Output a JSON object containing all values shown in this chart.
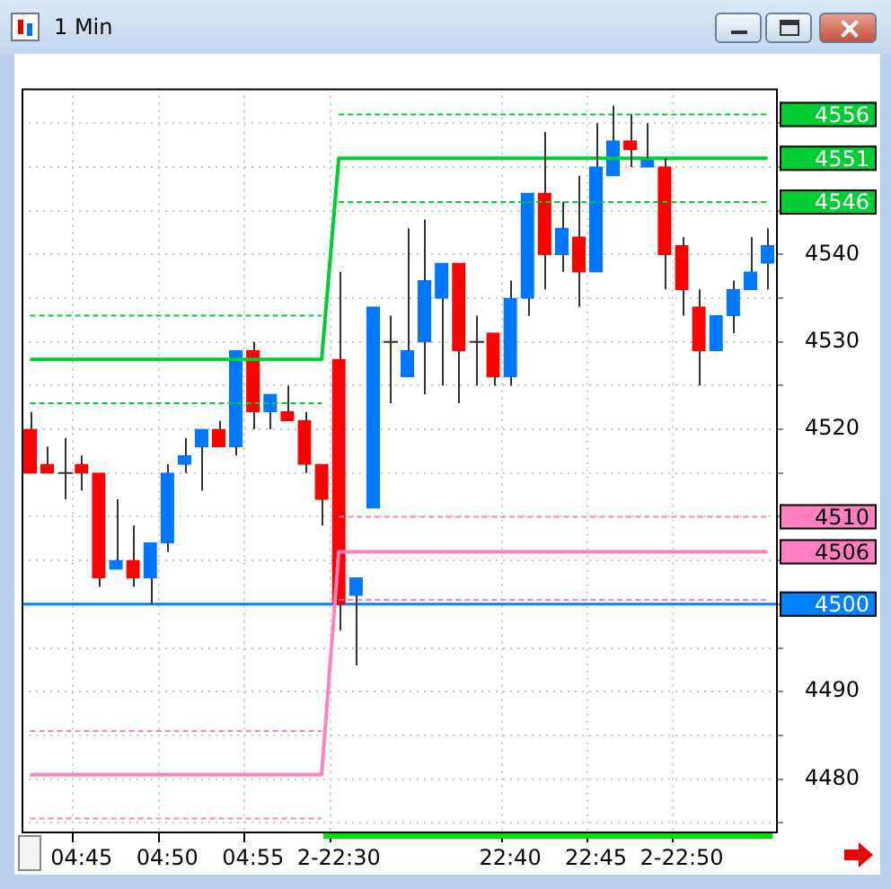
{
  "chart_data": {
    "type": "candlestick",
    "title": "1 Min",
    "categories": [
      null,
      null,
      null,
      "04:45",
      null,
      null,
      null,
      null,
      "04:50",
      null,
      null,
      null,
      null,
      "04:55",
      null,
      null,
      null,
      null,
      "2-22:30",
      null,
      null,
      null,
      null,
      null,
      null,
      null,
      null,
      null,
      "22:40",
      null,
      null,
      null,
      null,
      "22:45",
      null,
      null,
      null,
      null,
      "2-22:50",
      null,
      null,
      null,
      null,
      null
    ],
    "ohlc": [
      [
        4520,
        4522,
        4515,
        4515
      ],
      [
        4516,
        4518,
        4515,
        4515
      ],
      [
        4515,
        4519,
        4512,
        4515
      ],
      [
        4516,
        4517,
        4513,
        4515
      ],
      [
        4515,
        4515,
        4502,
        4503
      ],
      [
        4504,
        4512,
        4504,
        4505
      ],
      [
        4505,
        4509,
        4502,
        4503
      ],
      [
        4503,
        4507,
        4500,
        4507
      ],
      [
        4507,
        4516,
        4506,
        4515
      ],
      [
        4516,
        4519,
        4515,
        4517
      ],
      [
        4518,
        4520,
        4513,
        4520
      ],
      [
        4520,
        4521,
        4518,
        4518
      ],
      [
        4518,
        4529,
        4517,
        4529
      ],
      [
        4529,
        4530,
        4520,
        4522
      ],
      [
        4522,
        4524,
        4520,
        4524
      ],
      [
        4522,
        4525,
        4521,
        4521
      ],
      [
        4521,
        4522,
        4515,
        4516
      ],
      [
        4516,
        4516,
        4509,
        4512
      ],
      [
        4528,
        4538,
        4497,
        4500
      ],
      [
        4501,
        4503,
        4493,
        4503
      ],
      [
        4511,
        4534,
        4511,
        4534
      ],
      [
        4530,
        4533,
        4523,
        4530
      ],
      [
        4526,
        4543,
        4526,
        4529
      ],
      [
        4530,
        4544,
        4524,
        4537
      ],
      [
        4535,
        4539,
        4525,
        4539
      ],
      [
        4539,
        4539,
        4523,
        4529
      ],
      [
        4530,
        4533,
        4525,
        4530
      ],
      [
        4531,
        4531,
        4525,
        4526
      ],
      [
        4526,
        4537,
        4525,
        4535
      ],
      [
        4535,
        4547,
        4533,
        4547
      ],
      [
        4547,
        4554,
        4536,
        4540
      ],
      [
        4540,
        4546,
        4538,
        4543
      ],
      [
        4542,
        4549,
        4534,
        4538
      ],
      [
        4538,
        4555,
        4538,
        4550
      ],
      [
        4549,
        4557,
        4549,
        4553
      ],
      [
        4553,
        4556,
        4550,
        4552
      ],
      [
        4550,
        4555,
        4550,
        4551
      ],
      [
        4550,
        4551,
        4536,
        4540
      ],
      [
        4541,
        4542,
        4533,
        4536
      ],
      [
        4534,
        4536,
        4525,
        4529
      ],
      [
        4529,
        4533,
        4529,
        4533
      ],
      [
        4533,
        4537,
        4531,
        4536
      ],
      [
        4536,
        4542,
        4536,
        4538
      ],
      [
        4539,
        4543,
        4536,
        4541
      ]
    ],
    "colors": [
      "#ff0000",
      "#ff0000",
      "#333333",
      "#ff0000",
      "#ff0000",
      "#0077ff",
      "#ff0000",
      "#0077ff",
      "#0077ff",
      "#0077ff",
      "#0077ff",
      "#ff0000",
      "#0077ff",
      "#ff0000",
      "#0077ff",
      "#ff0000",
      "#ff0000",
      "#ff0000",
      "#ff0000",
      "#0077ff",
      "#0077ff",
      "#333333",
      "#0077ff",
      "#0077ff",
      "#0077ff",
      "#ff0000",
      "#333333",
      "#ff0000",
      "#0077ff",
      "#0077ff",
      "#ff0000",
      "#0077ff",
      "#ff0000",
      "#0077ff",
      "#0077ff",
      "#ff0000",
      "#0077ff",
      "#ff0000",
      "#ff0000",
      "#ff0000",
      "#0077ff",
      "#0077ff",
      "#0077ff",
      "#0077ff"
    ],
    "series": [
      {
        "type": "line",
        "line_style": "solid",
        "name": "4551",
        "color": "#00cc33",
        "values": [
          4528,
          4528,
          4528,
          4528,
          4528,
          4528,
          4528,
          4528,
          4528,
          4528,
          4528,
          4528,
          4528,
          4528,
          4528,
          4528,
          4528,
          4528,
          4551,
          4551,
          4551,
          4551,
          4551,
          4551,
          4551,
          4551,
          4551,
          4551,
          4551,
          4551,
          4551,
          4551,
          4551,
          4551,
          4551,
          4551,
          4551,
          4551,
          4551,
          4551,
          4551,
          4551,
          4551,
          4551
        ]
      },
      {
        "type": "line",
        "line_style": "dashed",
        "color": "#00cc33",
        "values": [
          4533,
          4533,
          4533,
          4533,
          4533,
          4533,
          4533,
          4533,
          4533,
          4533,
          4533,
          4533,
          4533,
          4533,
          4533,
          4533,
          4533,
          4533,
          null,
          null,
          null,
          null,
          null,
          null,
          null,
          null,
          null,
          null,
          null,
          null,
          null,
          null,
          null,
          null,
          null,
          null,
          null,
          null,
          null,
          null,
          null,
          null,
          null,
          null
        ]
      },
      {
        "type": "line",
        "line_style": "dashed",
        "color": "#00cc33",
        "values": [
          4523,
          4523,
          4523,
          4523,
          4523,
          4523,
          4523,
          4523,
          4523,
          4523,
          4523,
          4523,
          4523,
          4523,
          4523,
          4523,
          4523,
          4523,
          null,
          null,
          null,
          null,
          null,
          null,
          null,
          null,
          null,
          null,
          null,
          null,
          null,
          null,
          null,
          null,
          null,
          null,
          null,
          null,
          null,
          null,
          null,
          null,
          null,
          null
        ]
      },
      {
        "type": "line",
        "line_style": "dashed",
        "name": "4556",
        "color": "#00cc33",
        "values": [
          null,
          null,
          null,
          null,
          null,
          null,
          null,
          null,
          null,
          null,
          null,
          null,
          null,
          null,
          null,
          null,
          null,
          null,
          4556,
          4556,
          4556,
          4556,
          4556,
          4556,
          4556,
          4556,
          4556,
          4556,
          4556,
          4556,
          4556,
          4556,
          4556,
          4556,
          4556,
          4556,
          4556,
          4556,
          4556,
          4556,
          4556,
          4556,
          4556,
          4556
        ]
      },
      {
        "type": "line",
        "line_style": "dashed",
        "name": "4546",
        "color": "#00cc33",
        "values": [
          null,
          null,
          null,
          null,
          null,
          null,
          null,
          null,
          null,
          null,
          null,
          null,
          null,
          null,
          null,
          null,
          null,
          null,
          4546,
          4546,
          4546,
          4546,
          4546,
          4546,
          4546,
          4546,
          4546,
          4546,
          4546,
          4546,
          4546,
          4546,
          4546,
          4546,
          4546,
          4546,
          4546,
          4546,
          4546,
          4546,
          4546,
          4546,
          4546,
          4546
        ]
      },
      {
        "type": "line",
        "line_style": "solid",
        "name": "4506",
        "color": "#ff80c0",
        "values": [
          4480.5,
          4480.5,
          4480.5,
          4480.5,
          4480.5,
          4480.5,
          4480.5,
          4480.5,
          4480.5,
          4480.5,
          4480.5,
          4480.5,
          4480.5,
          4480.5,
          4480.5,
          4480.5,
          4480.5,
          4480.5,
          4506,
          4506,
          4506,
          4506,
          4506,
          4506,
          4506,
          4506,
          4506,
          4506,
          4506,
          4506,
          4506,
          4506,
          4506,
          4506,
          4506,
          4506,
          4506,
          4506,
          4506,
          4506,
          4506,
          4506,
          4506,
          4506
        ]
      },
      {
        "type": "line",
        "line_style": "dashed",
        "color": "#ff80c0",
        "values": [
          4485.5,
          4485.5,
          4485.5,
          4485.5,
          4485.5,
          4485.5,
          4485.5,
          4485.5,
          4485.5,
          4485.5,
          4485.5,
          4485.5,
          4485.5,
          4485.5,
          4485.5,
          4485.5,
          4485.5,
          4485.5,
          null,
          null,
          null,
          null,
          null,
          null,
          null,
          null,
          null,
          null,
          null,
          null,
          null,
          null,
          null,
          null,
          null,
          null,
          null,
          null,
          null,
          null,
          null,
          null,
          null,
          null
        ]
      },
      {
        "type": "line",
        "line_style": "dashed",
        "color": "#ff80c0",
        "values": [
          4475.5,
          4475.5,
          4475.5,
          4475.5,
          4475.5,
          4475.5,
          4475.5,
          4475.5,
          4475.5,
          4475.5,
          4475.5,
          4475.5,
          4475.5,
          4475.5,
          4475.5,
          4475.5,
          4475.5,
          4475.5,
          null,
          null,
          null,
          null,
          null,
          null,
          null,
          null,
          null,
          null,
          null,
          null,
          null,
          null,
          null,
          null,
          null,
          null,
          null,
          null,
          null,
          null,
          null,
          null,
          null,
          null
        ]
      },
      {
        "type": "line",
        "line_style": "dashed",
        "name": "4510",
        "color": "#ff80c0",
        "values": [
          null,
          null,
          null,
          null,
          null,
          null,
          null,
          null,
          null,
          null,
          null,
          null,
          null,
          null,
          null,
          null,
          null,
          null,
          4510,
          4510,
          4510,
          4510,
          4510,
          4510,
          4510,
          4510,
          4510,
          4510,
          4510,
          4510,
          4510,
          4510,
          4510,
          4510,
          4510,
          4510,
          4510,
          4510,
          4510,
          4510,
          4510,
          4510,
          4510,
          4510
        ]
      },
      {
        "type": "line",
        "line_style": "dashed",
        "color": "#ff80c0",
        "values": [
          null,
          null,
          null,
          null,
          null,
          null,
          null,
          null,
          null,
          null,
          null,
          null,
          null,
          null,
          null,
          null,
          null,
          null,
          4500.5,
          4500.5,
          4500.5,
          4500.5,
          4500.5,
          4500.5,
          4500.5,
          4500.5,
          4500.5,
          4500.5,
          4500.5,
          4500.5,
          4500.5,
          4500.5,
          4500.5,
          4500.5,
          4500.5,
          4500.5,
          4500.5,
          4500.5,
          4500.5,
          4500.5,
          4500.5,
          4500.5,
          4500.5,
          4500.5
        ]
      }
    ],
    "ref_lines": [
      {
        "axis": "y",
        "value": 4500,
        "label": "4500",
        "color": "#0080ff"
      }
    ],
    "ylim": [
      4474,
      4559
    ],
    "yticks": [
      {
        "value": 4475,
        "label": null
      },
      4480,
      {
        "value": 4485,
        "label": null
      },
      4490,
      {
        "value": 4495,
        "label": null
      },
      {
        "value": 4500,
        "label": null
      },
      {
        "value": 4505,
        "label": null
      },
      {
        "value": 4510,
        "label": null
      },
      {
        "value": 4515,
        "label": null
      },
      4520,
      {
        "value": 4525,
        "label": null
      },
      4530,
      {
        "value": 4535,
        "label": null
      },
      4540,
      {
        "value": 4545,
        "label": null
      },
      {
        "value": 4550,
        "label": null
      },
      {
        "value": 4555,
        "label": null
      }
    ],
    "grid": true,
    "legend": "right"
  }
}
